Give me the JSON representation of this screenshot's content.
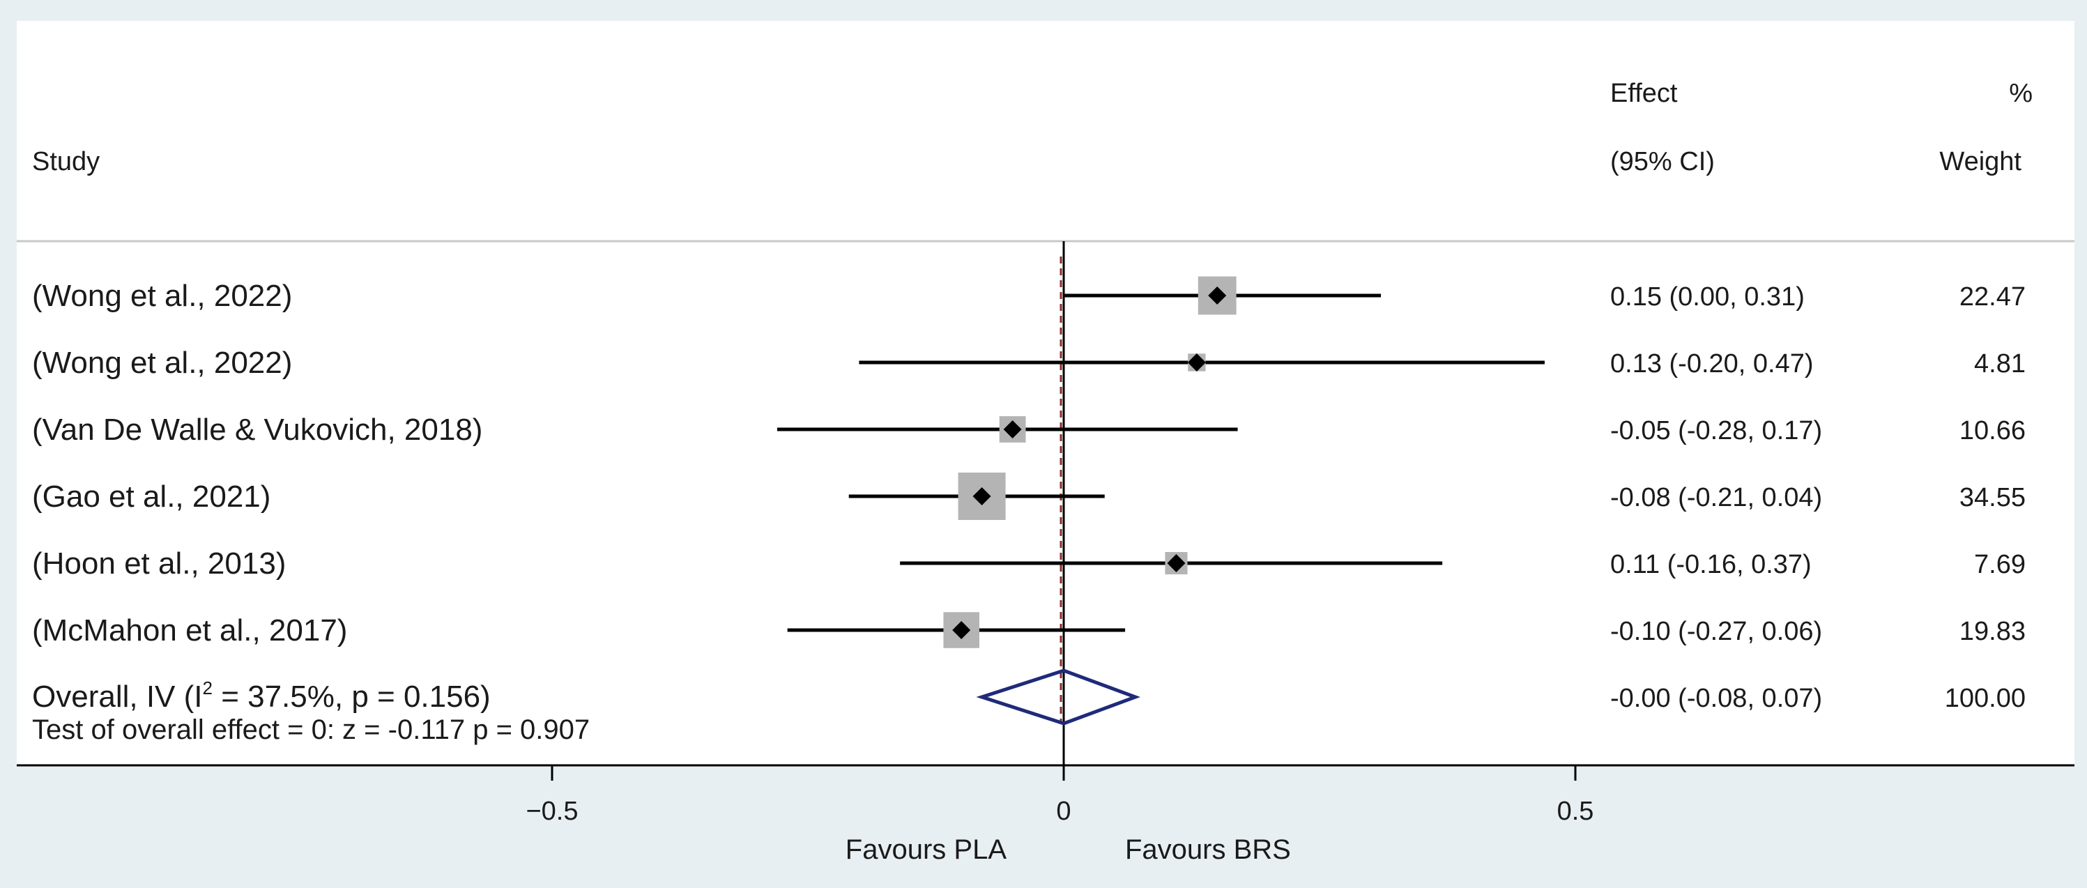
{
  "header": {
    "study_label": "Study",
    "effect_label_1": "Effect",
    "effect_label_2": "(95% CI)",
    "weight_label_1": "%",
    "weight_label_2": "Weight"
  },
  "chart_data": {
    "type": "forest",
    "xlim": [
      -1.0,
      1.0
    ],
    "null_line": 0,
    "overall_effect_line": 0.0,
    "xticks": [
      -0.5,
      0,
      0.5
    ],
    "xtick_labels": [
      "−0.5",
      "0",
      "0.5"
    ],
    "favours_left": "Favours PLA",
    "favours_right": "Favours BRS",
    "studies": [
      {
        "label": "(Wong et al., 2022)",
        "effect": 0.15,
        "lower": 0.0,
        "upper": 0.31,
        "effect_text": "0.15 (0.00, 0.31)",
        "weight": 22.47,
        "weight_text": "22.47"
      },
      {
        "label": "(Wong et al., 2022)",
        "effect": 0.13,
        "lower": -0.2,
        "upper": 0.47,
        "effect_text": "0.13 (-0.20, 0.47)",
        "weight": 4.81,
        "weight_text": "4.81"
      },
      {
        "label": "(Van De Walle & Vukovich, 2018)",
        "effect": -0.05,
        "lower": -0.28,
        "upper": 0.17,
        "effect_text": "-0.05 (-0.28, 0.17)",
        "weight": 10.66,
        "weight_text": "10.66"
      },
      {
        "label": "(Gao et al., 2021)",
        "effect": -0.08,
        "lower": -0.21,
        "upper": 0.04,
        "effect_text": "-0.08 (-0.21, 0.04)",
        "weight": 34.55,
        "weight_text": "34.55"
      },
      {
        "label": "(Hoon et al., 2013)",
        "effect": 0.11,
        "lower": -0.16,
        "upper": 0.37,
        "effect_text": "0.11 (-0.16, 0.37)",
        "weight": 7.69,
        "weight_text": "7.69"
      },
      {
        "label": "(McMahon et al., 2017)",
        "effect": -0.1,
        "lower": -0.27,
        "upper": 0.06,
        "effect_text": "-0.10 (-0.27, 0.06)",
        "weight": 19.83,
        "weight_text": "19.83"
      }
    ],
    "overall": {
      "label_prefix": "Overall, IV (I",
      "label_sup": "2",
      "label_suffix": " = 37.5%, p = 0.156)",
      "test_text": "Test of overall effect = 0:  z =  -0.117  p = 0.907",
      "effect": 0.0,
      "lower": -0.08,
      "upper": 0.07,
      "effect_text": "-0.00 (-0.08, 0.07)",
      "weight_text": "100.00"
    },
    "colors": {
      "box": "#b4b4b4",
      "ci_line": "#000000",
      "diamond": "#1f2a7a",
      "overall_line": "#8b2b2b",
      "null_line": "#000000",
      "background": "#e8eff3",
      "panel": "#ffffff"
    }
  }
}
